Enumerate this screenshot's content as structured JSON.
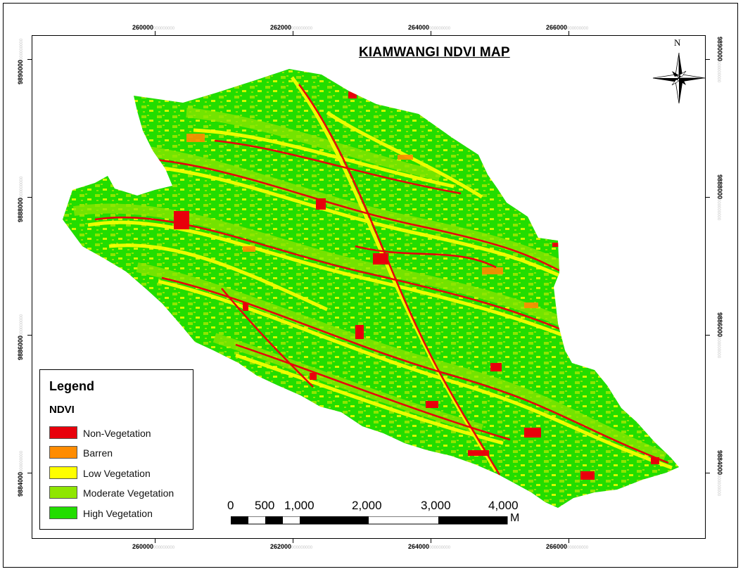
{
  "map": {
    "title": "KIAMWANGI NDVI MAP",
    "north_label": "N",
    "colors": {
      "non_vegetation": "#e8000b",
      "barren": "#ff8c00",
      "low": "#ffff00",
      "moderate": "#8fe600",
      "high": "#22dd00"
    }
  },
  "grid": {
    "x_labels": [
      {
        "main": "260000",
        "faint": "000000000"
      },
      {
        "main": "262000",
        "faint": "000000000"
      },
      {
        "main": "264000",
        "faint": "000000000"
      },
      {
        "main": "266000",
        "faint": "000000000"
      }
    ],
    "y_labels": [
      {
        "main": "9890000",
        "faint": "000000000"
      },
      {
        "main": "9888000",
        "faint": "000000000"
      },
      {
        "main": "9886000",
        "faint": "000000000"
      },
      {
        "main": "9884000",
        "faint": "000000000"
      }
    ]
  },
  "legend": {
    "title": "Legend",
    "subtitle": "NDVI",
    "items": [
      {
        "label": "Non-Vegetation",
        "color": "#e8000b"
      },
      {
        "label": "Barren",
        "color": "#ff8c00"
      },
      {
        "label": "Low Vegetation",
        "color": "#ffff00"
      },
      {
        "label": "Moderate Vegetation",
        "color": "#8fe600"
      },
      {
        "label": " High Vegetation",
        "color": "#22dd00"
      }
    ]
  },
  "scale": {
    "labels": [
      "0",
      "500",
      "1,000",
      "2,000",
      "3,000",
      "4,000"
    ],
    "unit": "M"
  }
}
